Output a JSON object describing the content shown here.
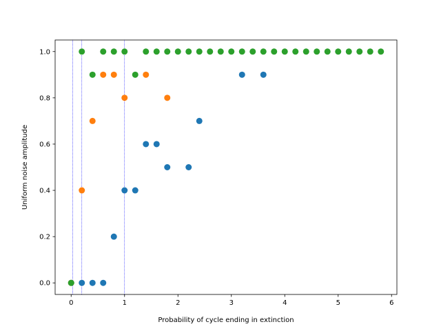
{
  "chart_data": {
    "type": "scatter",
    "title": "",
    "xlabel": "Probability of cycle ending in extinction",
    "ylabel": "Uniform noise amplitude",
    "xlim": [
      -0.3,
      6.1
    ],
    "ylim": [
      -0.05,
      1.05
    ],
    "xticks": [
      0,
      1,
      2,
      3,
      4,
      5,
      6
    ],
    "xtick_labels": [
      "0",
      "1",
      "2",
      "3",
      "4",
      "5",
      "6"
    ],
    "yticks": [
      0.0,
      0.2,
      0.4,
      0.6,
      0.8,
      1.0
    ],
    "ytick_labels": [
      "0.0",
      "0.2",
      "0.4",
      "0.6",
      "0.8",
      "1.0"
    ],
    "grid": false,
    "legend": "none",
    "vlines": [
      {
        "x": 0.03,
        "color": "#0000ff",
        "style": "dotted"
      },
      {
        "x": 0.2,
        "color": "#0000ff",
        "style": "dotted"
      },
      {
        "x": 1.0,
        "color": "#0000ff",
        "style": "dotted"
      }
    ],
    "series": [
      {
        "color": "#1f77b4",
        "points": [
          [
            0.0,
            0.0
          ],
          [
            0.2,
            0.0
          ],
          [
            0.4,
            0.0
          ],
          [
            0.6,
            0.0
          ],
          [
            0.8,
            0.2
          ],
          [
            1.0,
            0.4
          ],
          [
            1.2,
            0.4
          ],
          [
            1.4,
            0.6
          ],
          [
            1.6,
            0.6
          ],
          [
            1.8,
            0.5
          ],
          [
            2.2,
            0.5
          ],
          [
            2.4,
            0.7
          ],
          [
            3.2,
            0.9
          ],
          [
            3.6,
            0.9
          ]
        ]
      },
      {
        "color": "#ff7f0e",
        "points": [
          [
            0.0,
            0.0
          ],
          [
            0.2,
            0.4
          ],
          [
            0.4,
            0.7
          ],
          [
            0.6,
            0.9
          ],
          [
            0.8,
            0.9
          ],
          [
            1.0,
            0.8
          ],
          [
            1.4,
            0.9
          ],
          [
            1.8,
            0.8
          ]
        ]
      },
      {
        "color": "#2ca02c",
        "points": [
          [
            0.0,
            0.0
          ],
          [
            0.2,
            1.0
          ],
          [
            0.4,
            0.9
          ],
          [
            0.6,
            1.0
          ],
          [
            0.8,
            1.0
          ],
          [
            1.0,
            1.0
          ],
          [
            1.2,
            0.9
          ],
          [
            1.4,
            1.0
          ],
          [
            1.6,
            1.0
          ],
          [
            1.8,
            1.0
          ],
          [
            2.0,
            1.0
          ],
          [
            2.2,
            1.0
          ],
          [
            2.4,
            1.0
          ],
          [
            2.6,
            1.0
          ],
          [
            2.8,
            1.0
          ],
          [
            3.0,
            1.0
          ],
          [
            3.2,
            1.0
          ],
          [
            3.4,
            1.0
          ],
          [
            3.6,
            1.0
          ],
          [
            3.8,
            1.0
          ],
          [
            4.0,
            1.0
          ],
          [
            4.2,
            1.0
          ],
          [
            4.4,
            1.0
          ],
          [
            4.6,
            1.0
          ],
          [
            4.8,
            1.0
          ],
          [
            5.0,
            1.0
          ],
          [
            5.2,
            1.0
          ],
          [
            5.4,
            1.0
          ],
          [
            5.6,
            1.0
          ],
          [
            5.8,
            1.0
          ]
        ]
      }
    ]
  }
}
